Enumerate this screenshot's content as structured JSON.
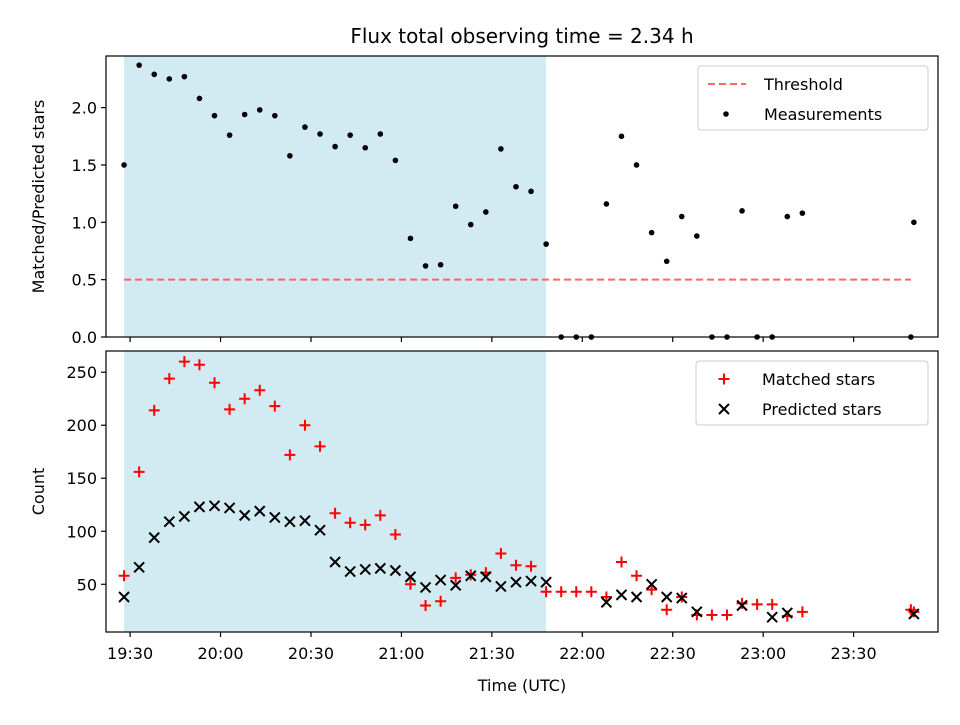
{
  "chart_data": {
    "type": "scatter",
    "title": "Flux total observing time = 2.34 h",
    "xlabel": "Time (UTC)",
    "x_ticks": [
      "19:30",
      "20:00",
      "20:30",
      "21:00",
      "21:30",
      "22:00",
      "22:30",
      "23:00",
      "23:30"
    ],
    "x_range": [
      "19:22",
      "23:58"
    ],
    "shaded_interval": {
      "start": "19:28",
      "end": "21:48",
      "color": "#add8e6"
    },
    "panels": [
      {
        "ylabel": "Matched/Predicted stars",
        "ylim": [
          0,
          2.45
        ],
        "y_ticks": [
          "0.0",
          "0.5",
          "1.0",
          "1.5",
          "2.0"
        ],
        "legend_position": "top-right",
        "series": [
          {
            "name": "Threshold",
            "kind": "dashed-line",
            "color": "#ff6666",
            "x": [
              "19:28",
              "23:49"
            ],
            "y": [
              0.5,
              0.5
            ]
          },
          {
            "name": "Measurements",
            "kind": "dot",
            "color": "#000000",
            "x": [
              "19:28",
              "19:33",
              "19:38",
              "19:43",
              "19:48",
              "19:53",
              "19:58",
              "20:03",
              "20:08",
              "20:13",
              "20:18",
              "20:23",
              "20:28",
              "20:33",
              "20:38",
              "20:43",
              "20:48",
              "20:53",
              "20:58",
              "21:03",
              "21:08",
              "21:13",
              "21:18",
              "21:23",
              "21:28",
              "21:33",
              "21:38",
              "21:43",
              "21:48",
              "21:53",
              "21:58",
              "22:03",
              "22:08",
              "22:13",
              "22:18",
              "22:23",
              "22:28",
              "22:33",
              "22:38",
              "22:43",
              "22:48",
              "22:53",
              "22:58",
              "23:03",
              "23:08",
              "23:13",
              "23:49",
              "23:50"
            ],
            "y": [
              1.5,
              2.37,
              2.29,
              2.25,
              2.27,
              2.08,
              1.93,
              1.76,
              1.94,
              1.98,
              1.93,
              1.58,
              1.83,
              1.77,
              1.66,
              1.76,
              1.65,
              1.77,
              1.54,
              0.86,
              0.62,
              0.63,
              1.14,
              0.98,
              1.09,
              1.64,
              1.31,
              1.27,
              0.81,
              0,
              0,
              0,
              1.16,
              1.75,
              1.5,
              0.91,
              0.66,
              1.05,
              0.88,
              0,
              0,
              1.1,
              0,
              0,
              1.05,
              1.08,
              0,
              1.0
            ]
          }
        ]
      },
      {
        "ylabel": "Count",
        "ylim": [
          5,
          270
        ],
        "y_ticks": [
          "50",
          "100",
          "150",
          "200",
          "250"
        ],
        "legend_position": "top-right",
        "series": [
          {
            "name": "Matched stars",
            "kind": "plus",
            "color": "#ff0000",
            "x": [
              "19:28",
              "19:33",
              "19:38",
              "19:43",
              "19:48",
              "19:53",
              "19:58",
              "20:03",
              "20:08",
              "20:13",
              "20:18",
              "20:23",
              "20:28",
              "20:33",
              "20:38",
              "20:43",
              "20:48",
              "20:53",
              "20:58",
              "21:03",
              "21:08",
              "21:13",
              "21:18",
              "21:23",
              "21:28",
              "21:33",
              "21:38",
              "21:43",
              "21:48",
              "21:53",
              "21:58",
              "22:03",
              "22:08",
              "22:13",
              "22:18",
              "22:23",
              "22:28",
              "22:33",
              "22:38",
              "22:43",
              "22:48",
              "22:53",
              "22:58",
              "23:03",
              "23:08",
              "23:13",
              "23:49",
              "23:50"
            ],
            "y": [
              58,
              156,
              214,
              244,
              260,
              257,
              240,
              215,
              225,
              233,
              218,
              172,
              200,
              180,
              117,
              108,
              106,
              115,
              97,
              50,
              30,
              34,
              56,
              59,
              61,
              79,
              68,
              67,
              43,
              43,
              43,
              43,
              38,
              71,
              58,
              45,
              26,
              38,
              21,
              21,
              21,
              32,
              31,
              31,
              20,
              24,
              26,
              24
            ]
          },
          {
            "name": "Predicted stars",
            "kind": "cross",
            "color": "#000000",
            "x": [
              "19:28",
              "19:33",
              "19:38",
              "19:43",
              "19:48",
              "19:53",
              "19:58",
              "20:03",
              "20:08",
              "20:13",
              "20:18",
              "20:23",
              "20:28",
              "20:33",
              "20:38",
              "20:43",
              "20:48",
              "20:53",
              "20:58",
              "21:03",
              "21:08",
              "21:13",
              "21:18",
              "21:23",
              "21:28",
              "21:33",
              "21:38",
              "21:43",
              "21:48",
              "22:08",
              "22:13",
              "22:18",
              "22:23",
              "22:28",
              "22:33",
              "22:38",
              "22:53",
              "23:03",
              "23:08",
              "23:50"
            ],
            "y": [
              38,
              66,
              94,
              109,
              114,
              123,
              124,
              122,
              115,
              119,
              113,
              109,
              110,
              101,
              71,
              62,
              64,
              65,
              63,
              57,
              47,
              54,
              49,
              58,
              57,
              48,
              52,
              53,
              52,
              33,
              40,
              38,
              50,
              38,
              37,
              24,
              30,
              19,
              23,
              22
            ]
          }
        ]
      }
    ]
  }
}
